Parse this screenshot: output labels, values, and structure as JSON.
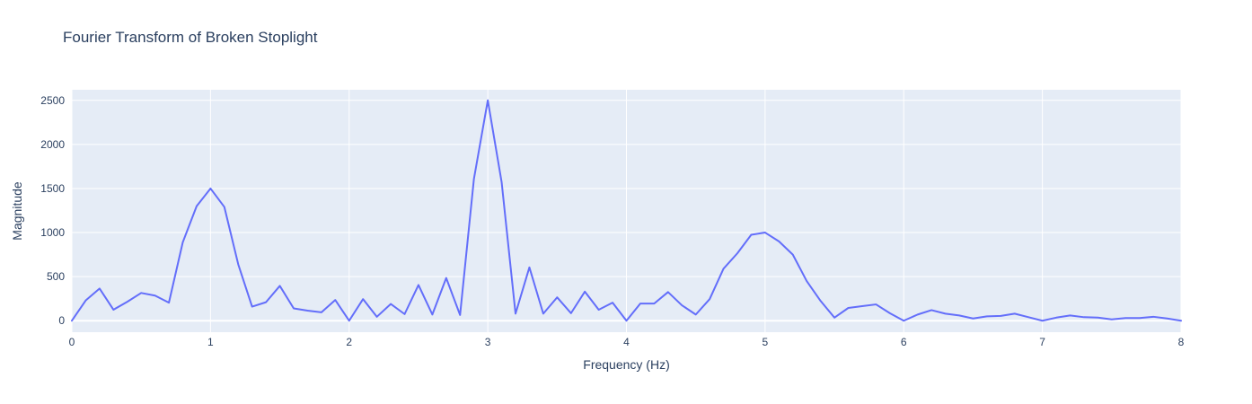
{
  "chart_data": {
    "type": "line",
    "title": "Fourier Transform of Broken Stoplight",
    "xlabel": "Frequency (Hz)",
    "ylabel": "Magnitude",
    "xlim": [
      0,
      8
    ],
    "ylim": [
      -130,
      2620
    ],
    "x_ticks": [
      0,
      1,
      2,
      3,
      4,
      5,
      6,
      7,
      8
    ],
    "y_ticks": [
      0,
      500,
      1000,
      1500,
      2000,
      2500
    ],
    "grid": true,
    "legend": "none",
    "colors": {
      "plot_background": "#e5ecf6",
      "grid": "#ffffff",
      "line": "#636efa",
      "text": "#2a3f5f"
    },
    "series": [
      {
        "x": [
          0,
          0.1,
          0.2,
          0.3,
          0.4,
          0.5,
          0.6,
          0.7,
          0.8,
          0.9,
          1.0,
          1.1,
          1.2,
          1.3,
          1.4,
          1.5,
          1.6,
          1.7,
          1.8,
          1.9,
          2.0,
          2.1,
          2.2,
          2.3,
          2.4,
          2.5,
          2.6,
          2.7,
          2.8,
          2.9,
          3.0,
          3.1,
          3.2,
          3.3,
          3.4,
          3.5,
          3.6,
          3.7,
          3.8,
          3.9,
          4.0,
          4.1,
          4.2,
          4.3,
          4.4,
          4.5,
          4.6,
          4.7,
          4.8,
          4.9,
          5.0,
          5.1,
          5.2,
          5.3,
          5.4,
          5.5,
          5.6,
          5.7,
          5.8,
          5.9,
          6.0,
          6.1,
          6.2,
          6.3,
          6.4,
          6.5,
          6.6,
          6.7,
          6.8,
          6.9,
          7.0,
          7.1,
          7.2,
          7.3,
          7.4,
          7.5,
          7.6,
          7.7,
          7.8,
          7.9,
          8.0
        ],
        "y": [
          0,
          230,
          365,
          125,
          215,
          315,
          285,
          205,
          890,
          1300,
          1500,
          1290,
          640,
          160,
          210,
          395,
          140,
          115,
          95,
          235,
          0,
          245,
          45,
          190,
          75,
          405,
          70,
          485,
          65,
          1610,
          2500,
          1570,
          80,
          605,
          80,
          265,
          85,
          330,
          125,
          205,
          0,
          195,
          195,
          325,
          175,
          70,
          245,
          590,
          765,
          975,
          1000,
          900,
          750,
          450,
          225,
          35,
          145,
          165,
          185,
          85,
          0,
          70,
          120,
          80,
          60,
          25,
          50,
          55,
          80,
          40,
          0,
          35,
          60,
          40,
          35,
          15,
          30,
          30,
          45,
          25,
          0
        ]
      }
    ]
  }
}
